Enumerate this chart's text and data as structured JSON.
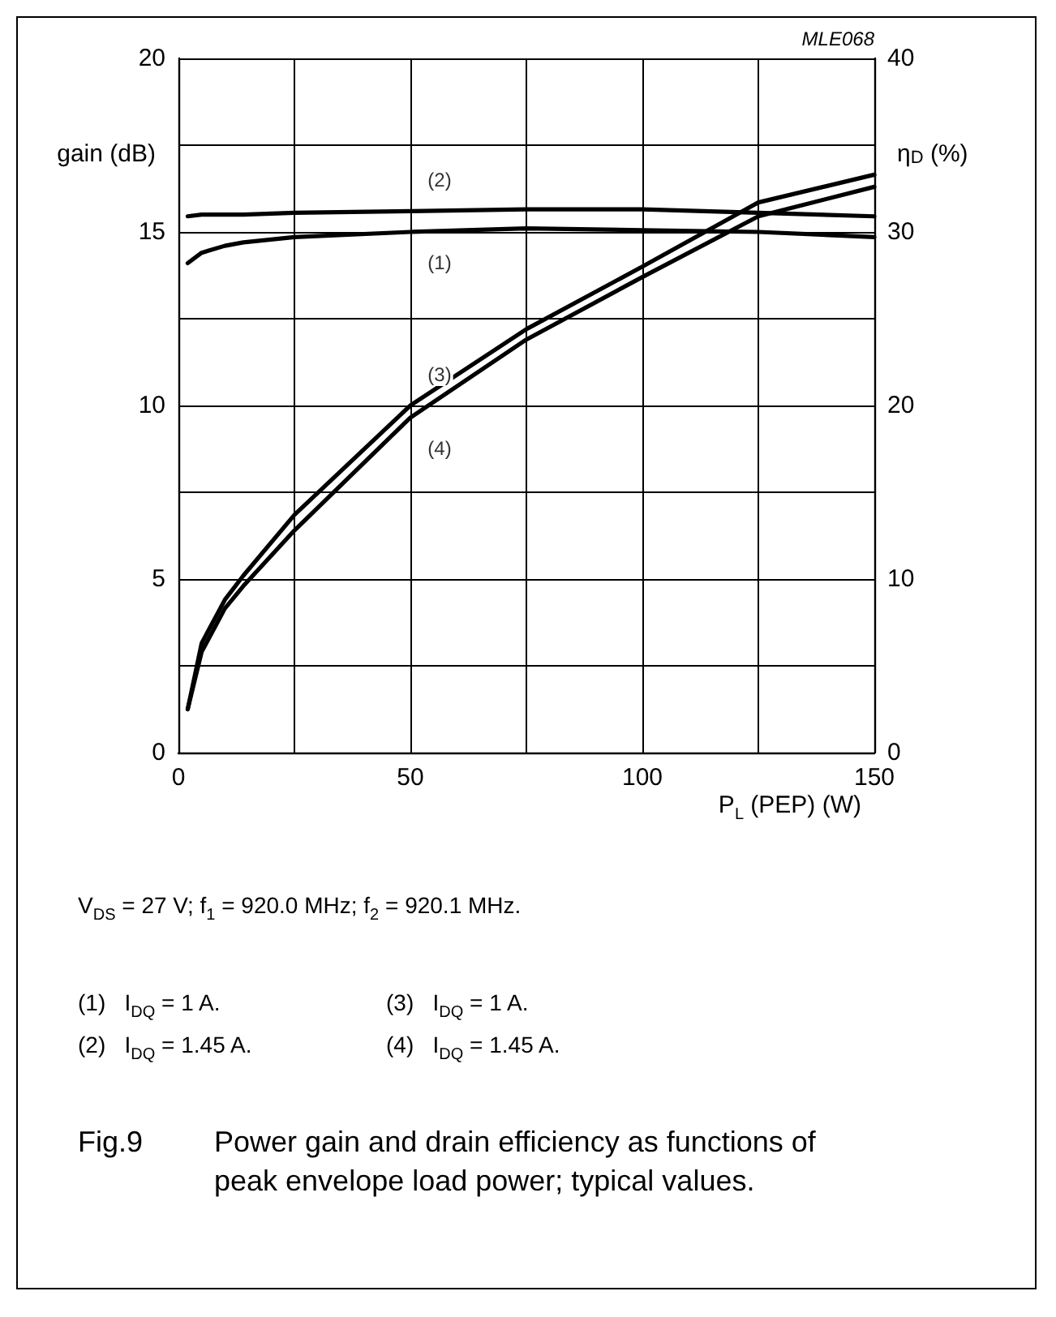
{
  "chart_data": {
    "type": "line",
    "title": "Fig.9 Power gain and drain efficiency as functions of peak envelope load power; typical values.",
    "xlabel": "P$_{L}$ (PEP) (W)",
    "ylabel": "gain (dB)",
    "y2label": "η$_{D}$ (%)",
    "x": [
      2,
      5,
      10,
      14,
      25,
      50,
      75,
      100,
      125,
      150
    ],
    "series": [
      {
        "name": "(1)",
        "color": "#000000",
        "values": [
          14.1,
          14.4,
          14.6,
          14.7,
          14.85,
          15.0,
          15.1,
          15.05,
          15.0,
          14.85
        ]
      },
      {
        "name": "(2)",
        "color": "#000000",
        "values": [
          15.45,
          15.5,
          15.5,
          15.5,
          15.55,
          15.6,
          15.65,
          15.65,
          15.55,
          15.45
        ]
      },
      {
        "name": "(3)",
        "color": "#000000",
        "axis": "y2",
        "values": [
          2.5,
          6.3,
          8.8,
          10.2,
          13.7,
          20.0,
          24.4,
          28.0,
          31.7,
          33.3
        ]
      },
      {
        "name": "(4)",
        "color": "#000000",
        "axis": "y2",
        "values": [
          2.5,
          5.8,
          8.3,
          9.6,
          12.8,
          19.3,
          23.8,
          27.4,
          30.9,
          32.6
        ]
      }
    ],
    "xlim": [
      0,
      150
    ],
    "xticks": [
      0,
      {
        "value": 25,
        "label": null
      },
      50,
      {
        "value": 75,
        "label": null
      },
      100,
      {
        "value": 125,
        "label": null
      },
      150
    ],
    "ylim": [
      0,
      20
    ],
    "yticks": [
      0,
      {
        "value": 2.5,
        "label": null
      },
      5,
      {
        "value": 7.5,
        "label": null
      },
      10,
      {
        "value": 12.5,
        "label": null
      },
      15,
      {
        "value": 17.5,
        "label": null
      },
      20
    ],
    "y2lim": [
      0,
      40
    ],
    "y2ticks": [
      0,
      10,
      20,
      30,
      40
    ],
    "grid": true,
    "legend": false,
    "marker": "none",
    "line_style": "solid",
    "annotations": [
      "MLE068",
      "V$_{DS}$ = 27 V; f$_{1}$ = 920.0 MHz; f$_{2}$ = 920.1 MHz.",
      "(1)  I$_{DQ}$ = 1 A.",
      "(2)  I$_{DQ}$ = 1.45 A.",
      "(3)  I$_{DQ}$ = 1 A.",
      "(4)  I$_{DQ}$ = 1.45 A."
    ]
  }
}
